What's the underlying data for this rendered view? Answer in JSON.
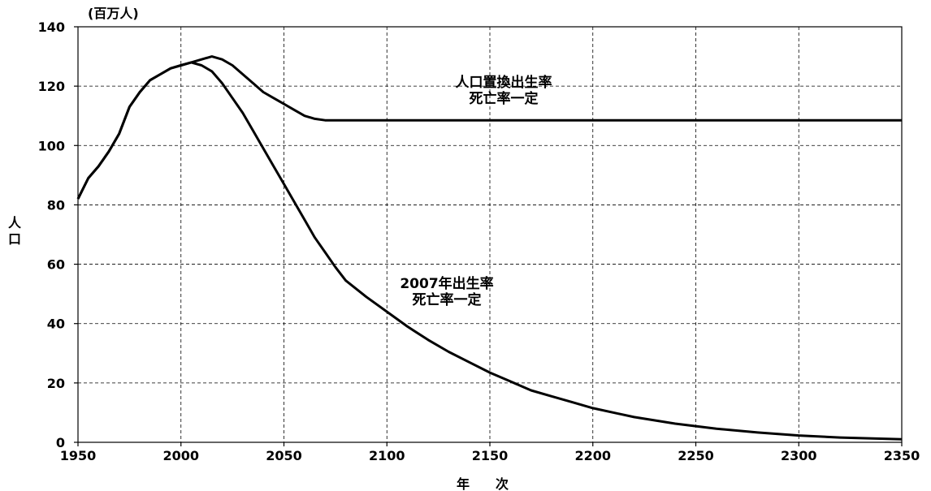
{
  "chart_data": {
    "type": "line",
    "unit_label": "(百万人)",
    "xlabel": "年　　次",
    "ylabel": "人口",
    "xlim": [
      1950,
      2350
    ],
    "ylim": [
      0,
      140
    ],
    "x_ticks": [
      1950,
      2000,
      2050,
      2100,
      2150,
      2200,
      2250,
      2300,
      2350
    ],
    "y_ticks": [
      0,
      20,
      40,
      60,
      80,
      100,
      120,
      140
    ],
    "grid": true,
    "series": [
      {
        "annotation": [
          "人口置換出生率",
          "死亡率一定"
        ],
        "x": [
          1950,
          1955,
          1960,
          1965,
          1970,
          1975,
          1980,
          1985,
          1990,
          1995,
          2000,
          2005,
          2010,
          2015,
          2020,
          2025,
          2030,
          2035,
          2040,
          2045,
          2050,
          2055,
          2060,
          2065,
          2070,
          2080,
          2100,
          2150,
          2200,
          2250,
          2300,
          2350
        ],
        "y": [
          82,
          89,
          93,
          98,
          104,
          113,
          118,
          122,
          124,
          126,
          127,
          128,
          129,
          130,
          129,
          127,
          124,
          121,
          118,
          116,
          114,
          112,
          110,
          109,
          108.5,
          108.5,
          108.5,
          108.5,
          108.5,
          108.5,
          108.5,
          108.5
        ]
      },
      {
        "annotation": [
          "2007年出生率",
          "死亡率一定"
        ],
        "x": [
          1950,
          1955,
          1960,
          1965,
          1970,
          1975,
          1980,
          1985,
          1990,
          1995,
          2000,
          2005,
          2010,
          2015,
          2020,
          2025,
          2030,
          2035,
          2040,
          2045,
          2050,
          2055,
          2060,
          2065,
          2070,
          2075,
          2080,
          2090,
          2100,
          2110,
          2120,
          2130,
          2140,
          2150,
          2160,
          2170,
          2180,
          2190,
          2200,
          2220,
          2240,
          2260,
          2280,
          2300,
          2320,
          2350
        ],
        "y": [
          82,
          89,
          93,
          98,
          104,
          113,
          118,
          122,
          124,
          126,
          127,
          128,
          127,
          125,
          121,
          116,
          111,
          105,
          99,
          93,
          87,
          81,
          75,
          69,
          64,
          59,
          54.5,
          49,
          44,
          39,
          34.5,
          30.5,
          27,
          23.5,
          20.5,
          17.5,
          15.5,
          13.5,
          11.5,
          8.5,
          6.3,
          4.6,
          3.3,
          2.3,
          1.6,
          1
        ]
      }
    ]
  }
}
